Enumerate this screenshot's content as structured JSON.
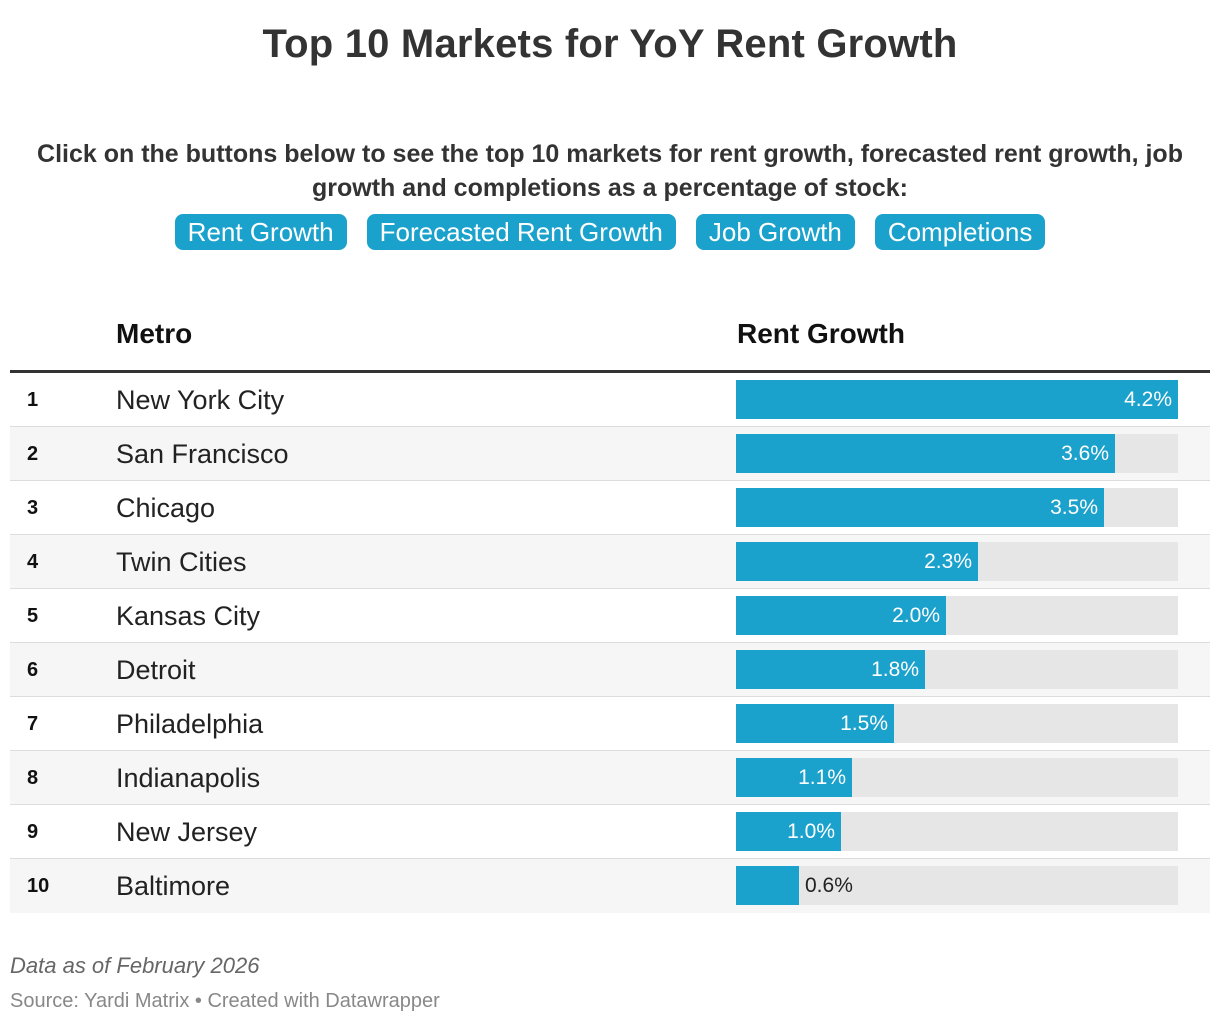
{
  "title": "Top 10 Markets for YoY Rent Growth",
  "intro": "Click on the buttons below to see the top 10 markets for rent growth, forecasted rent growth, job growth and completions as a percentage of stock:",
  "buttons": [
    "Rent Growth",
    "Forecasted Rent Growth",
    "Job Growth",
    "Completions"
  ],
  "colors": {
    "accent": "#1aa1cc",
    "track": "#e6e6e6"
  },
  "table": {
    "headers": {
      "metro": "Metro",
      "value": "Rent Growth"
    }
  },
  "chart_data": {
    "type": "table",
    "columns": [
      "",
      "Metro",
      "Rent Growth"
    ],
    "xlim": [
      0,
      4.2
    ],
    "rows": [
      {
        "rank": "1",
        "metro": "New York City",
        "value": 4.2,
        "label": "4.2%"
      },
      {
        "rank": "2",
        "metro": "San Francisco",
        "value": 3.6,
        "label": "3.6%"
      },
      {
        "rank": "3",
        "metro": "Chicago",
        "value": 3.5,
        "label": "3.5%"
      },
      {
        "rank": "4",
        "metro": "Twin Cities",
        "value": 2.3,
        "label": "2.3%"
      },
      {
        "rank": "5",
        "metro": "Kansas City",
        "value": 2.0,
        "label": "2.0%"
      },
      {
        "rank": "6",
        "metro": "Detroit",
        "value": 1.8,
        "label": "1.8%"
      },
      {
        "rank": "7",
        "metro": "Philadelphia",
        "value": 1.5,
        "label": "1.5%"
      },
      {
        "rank": "8",
        "metro": "Indianapolis",
        "value": 1.1,
        "label": "1.1%"
      },
      {
        "rank": "9",
        "metro": "New Jersey",
        "value": 1.0,
        "label": "1.0%"
      },
      {
        "rank": "10",
        "metro": "Baltimore",
        "value": 0.6,
        "label": "0.6%"
      }
    ]
  },
  "footer": {
    "note": "Data as of February 2026",
    "source": "Source: Yardi Matrix • Created with Datawrapper"
  }
}
